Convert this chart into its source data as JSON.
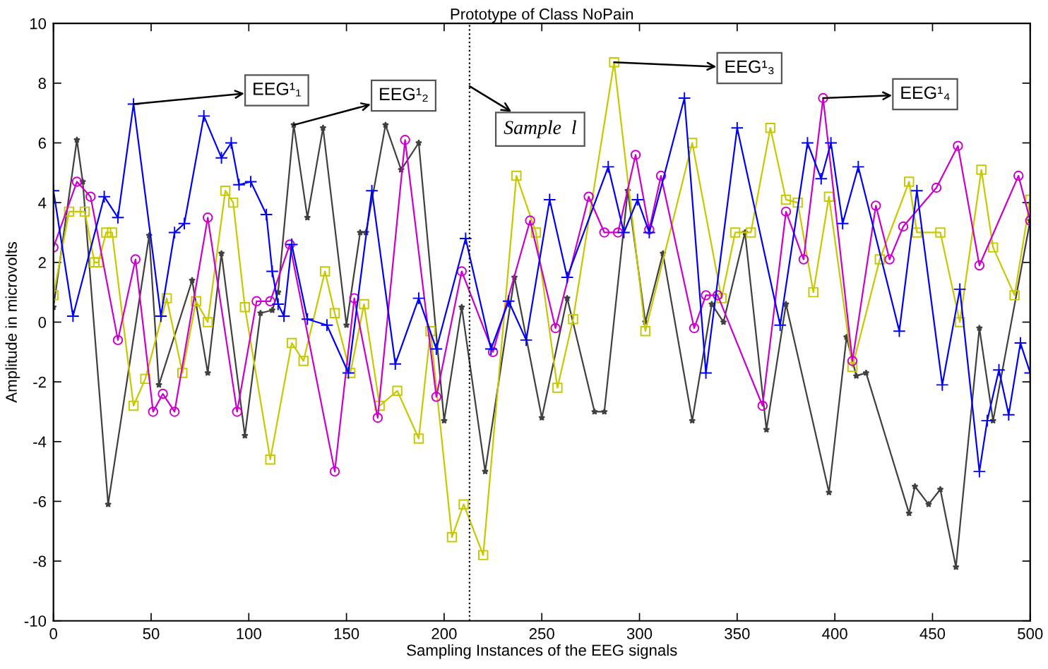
{
  "chart_data": {
    "type": "line",
    "title": "Prototype of Class NoPain",
    "xlabel": "Sampling Instances of the EEG signals",
    "ylabel": "Amplitude in microvolts",
    "xlim": [
      0,
      500
    ],
    "xticks": [
      0,
      50,
      100,
      150,
      200,
      250,
      300,
      350,
      400,
      450,
      500
    ],
    "ylim": [
      -10,
      10
    ],
    "yticks": [
      -10,
      -8,
      -6,
      -4,
      -2,
      0,
      2,
      4,
      6,
      8,
      10
    ],
    "grid": false,
    "legend": false,
    "line_style": "solid",
    "ref_lines": [
      {
        "axis": "x",
        "value": 213,
        "color": "#000000",
        "line_style": "dotted"
      }
    ],
    "annotations": [
      {
        "text": "EEG¹₁",
        "x": 41,
        "y": 7.3
      },
      {
        "text": "EEG¹₂",
        "x": 123,
        "y": 6.6
      },
      {
        "text": "EEG¹₃",
        "x": 287,
        "y": 8.7
      },
      {
        "text": "EEG¹₄",
        "x": 394,
        "y": 7.5
      },
      {
        "text": "Sample  l",
        "x": 213,
        "y": 7.9
      }
    ],
    "series": [
      {
        "color": "#404040",
        "marker": "star",
        "x": [
          0,
          12,
          15,
          28,
          49,
          54,
          71,
          79,
          86,
          98,
          106,
          112,
          115,
          123,
          130,
          138,
          150,
          157,
          160,
          170,
          178,
          187,
          200,
          209,
          221,
          236,
          250,
          263,
          277,
          282,
          294,
          303,
          312,
          327,
          337,
          343,
          354,
          365,
          375,
          397,
          406,
          411,
          416,
          438,
          441,
          448,
          454,
          462,
          474,
          481,
          500
        ],
        "values": [
          0.5,
          6.1,
          4.7,
          -6.1,
          2.9,
          -2.1,
          1.4,
          -1.7,
          2.3,
          -3.8,
          0.3,
          0.4,
          1.0,
          6.6,
          3.5,
          6.5,
          -0.1,
          3.0,
          3.0,
          6.6,
          5.1,
          6.0,
          -3.3,
          0.5,
          -5.0,
          1.5,
          -3.2,
          0.8,
          -3.0,
          -3.0,
          4.4,
          0.0,
          2.3,
          -3.3,
          0.6,
          0.0,
          3.0,
          -3.6,
          0.6,
          -5.7,
          -0.5,
          -1.8,
          -1.7,
          -6.4,
          -5.5,
          -6.1,
          -5.6,
          -8.2,
          -0.2,
          -3.3,
          3.4
        ]
      },
      {
        "color": "#c8c800",
        "marker": "square",
        "x": [
          0,
          8,
          16,
          21,
          23,
          27,
          30,
          41,
          47,
          58,
          66,
          73,
          79,
          88,
          92,
          98,
          111,
          122,
          128,
          139,
          144,
          152,
          159,
          167,
          176,
          187,
          193,
          204,
          210,
          220,
          237,
          247,
          258,
          266,
          287,
          303,
          327,
          342,
          349,
          357,
          367,
          375,
          381,
          389,
          397,
          409,
          423,
          438,
          442,
          454,
          464,
          475,
          481,
          492,
          500
        ],
        "values": [
          0.9,
          3.7,
          3.7,
          2.0,
          2.0,
          3.0,
          3.0,
          -2.8,
          -1.9,
          0.8,
          -1.7,
          0.7,
          0.0,
          4.4,
          4.0,
          0.5,
          -4.6,
          -0.7,
          -1.3,
          1.7,
          0.3,
          -1.7,
          0.6,
          -2.8,
          -2.3,
          -3.9,
          -0.3,
          -7.2,
          -6.1,
          -7.8,
          4.9,
          3.0,
          -2.2,
          0.1,
          8.7,
          -0.3,
          6.0,
          0.8,
          3.0,
          3.0,
          6.5,
          4.1,
          4.0,
          1.0,
          4.2,
          -1.5,
          2.1,
          4.7,
          3.0,
          3.0,
          0.0,
          5.1,
          2.5,
          0.9,
          4.1
        ]
      },
      {
        "color": "#cc00cc",
        "marker": "circle",
        "x": [
          0,
          12,
          19,
          33,
          42,
          51,
          56,
          62,
          79,
          94,
          104,
          111,
          121,
          144,
          154,
          166,
          180,
          196,
          209,
          225,
          244,
          257,
          274,
          282,
          289,
          298,
          305,
          311,
          328,
          334,
          340,
          363,
          375,
          384,
          394,
          409,
          421,
          428,
          435,
          452,
          463,
          474,
          494,
          500
        ],
        "values": [
          2.5,
          4.7,
          4.2,
          -0.6,
          2.1,
          -3.0,
          -2.4,
          -3.0,
          3.5,
          -3.0,
          0.7,
          0.7,
          2.6,
          -5.0,
          0.8,
          -3.2,
          6.1,
          -2.5,
          1.7,
          -1.0,
          3.4,
          -0.2,
          4.2,
          3.0,
          3.0,
          5.6,
          3.1,
          4.9,
          -0.2,
          0.9,
          0.9,
          -2.8,
          3.7,
          2.1,
          7.5,
          -1.3,
          3.9,
          2.1,
          3.2,
          4.5,
          5.9,
          1.9,
          4.9,
          3.4
        ]
      },
      {
        "color": "#0000ff",
        "marker": "cross",
        "x": [
          0,
          10,
          26,
          33,
          41,
          55,
          62,
          67,
          77,
          86,
          91,
          95,
          101,
          109,
          112,
          115,
          118,
          122,
          130,
          140,
          151,
          163,
          175,
          187,
          196,
          211,
          224,
          233,
          242,
          254,
          263,
          284,
          292,
          299,
          305,
          323,
          334,
          350,
          372,
          386,
          393,
          398,
          404,
          412,
          433,
          442,
          455,
          464,
          474,
          478,
          484,
          489,
          495,
          500
        ],
        "values": [
          4.4,
          0.2,
          4.2,
          3.5,
          7.3,
          0.2,
          3.0,
          3.3,
          6.9,
          5.5,
          6.0,
          4.6,
          4.7,
          3.6,
          1.7,
          0.6,
          0.2,
          2.6,
          0.1,
          -0.1,
          -1.7,
          4.4,
          -1.4,
          0.8,
          -0.9,
          2.8,
          -0.9,
          0.7,
          -0.6,
          4.1,
          1.5,
          5.2,
          3.0,
          4.1,
          3.0,
          7.5,
          -1.7,
          6.5,
          -0.1,
          6.0,
          4.8,
          6.0,
          3.3,
          5.2,
          -0.3,
          4.4,
          -2.1,
          1.1,
          -5.0,
          -3.3,
          -1.6,
          -3.1,
          -0.7,
          -1.7
        ]
      }
    ]
  }
}
